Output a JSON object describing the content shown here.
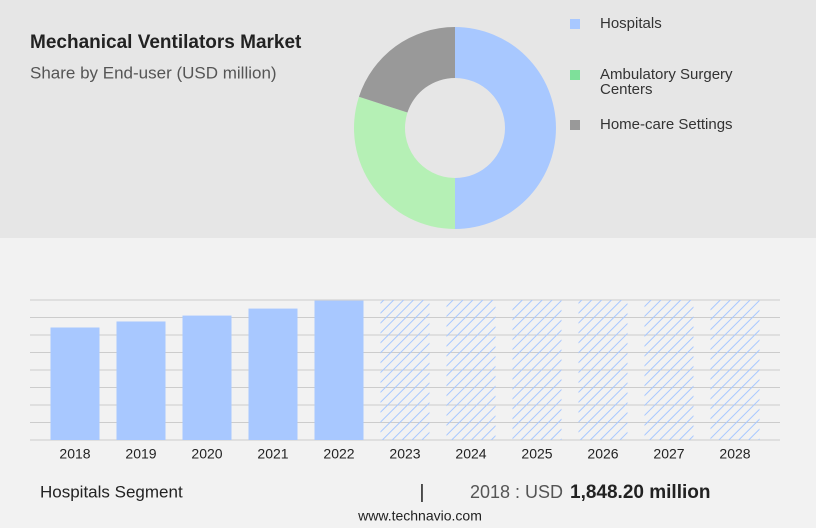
{
  "chart_data": [
    {
      "type": "pie",
      "title": "Mechanical Ventilators Market",
      "subtitle": "Share by End-user (USD million)",
      "categories": [
        "Hospitals",
        "Ambulatory Surgery Centers",
        "Home-care Settings"
      ],
      "values": [
        50,
        30,
        20
      ],
      "colors": [
        "#a8c8ff",
        "#b5f0b5",
        "#999999"
      ],
      "legend_colors": [
        "#a8c8ff",
        "#7ee09a",
        "#999999"
      ],
      "donut": true
    },
    {
      "type": "bar",
      "categories": [
        "2018",
        "2019",
        "2020",
        "2021",
        "2022",
        "2023",
        "2024",
        "2025",
        "2026",
        "2027",
        "2028"
      ],
      "values": [
        1848.2,
        1947,
        2044,
        2159,
        2290,
        null,
        null,
        null,
        null,
        null,
        null
      ],
      "color": "#a8c8ff",
      "ylim": [
        0,
        2300
      ],
      "yticks": [
        0,
        287.5,
        575,
        862.5,
        1150,
        1437.5,
        1725,
        2012.5,
        2300
      ],
      "grid": true
    }
  ],
  "footer": {
    "segment": "Hospitals Segment",
    "separator": "|",
    "year_label": "2018 : USD",
    "value_label": "1,848.20 million",
    "source": "www.technavio.com"
  }
}
